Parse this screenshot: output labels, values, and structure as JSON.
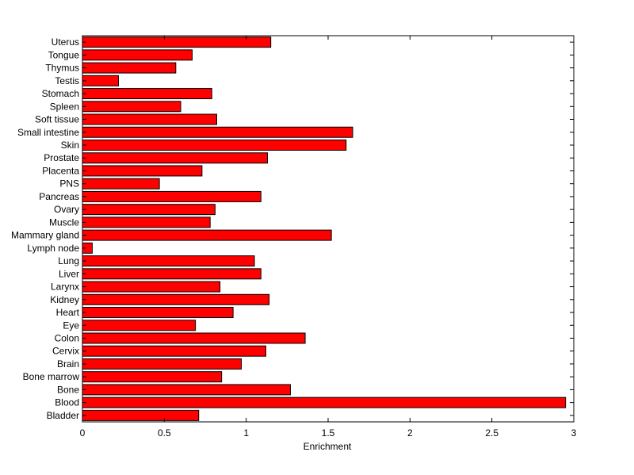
{
  "chart_data": {
    "type": "bar",
    "orientation": "horizontal",
    "xlabel": "Enrichment",
    "ylabel": "",
    "title": "",
    "xlim": [
      0,
      3
    ],
    "xticks": [
      "0",
      "0.5",
      "1",
      "1.5",
      "2",
      "2.5",
      "3"
    ],
    "grid": false,
    "bar_color": "#ff0000",
    "bar_edge_color": "#000000",
    "categories": [
      "Bladder",
      "Blood",
      "Bone",
      "Bone marrow",
      "Brain",
      "Cervix",
      "Colon",
      "Eye",
      "Heart",
      "Kidney",
      "Larynx",
      "Liver",
      "Lung",
      "Lymph node",
      "Mammary gland",
      "Muscle",
      "Ovary",
      "Pancreas",
      "PNS",
      "Placenta",
      "Prostate",
      "Skin",
      "Small intestine",
      "Soft tissue",
      "Spleen",
      "Stomach",
      "Testis",
      "Thymus",
      "Tongue",
      "Uterus"
    ],
    "values": [
      0.71,
      2.95,
      1.27,
      0.85,
      0.97,
      1.12,
      1.36,
      0.69,
      0.92,
      1.14,
      0.84,
      1.09,
      1.05,
      0.06,
      1.52,
      0.78,
      0.81,
      1.09,
      0.47,
      0.73,
      1.13,
      1.61,
      1.65,
      0.82,
      0.6,
      0.79,
      0.22,
      0.57,
      0.67,
      1.15
    ]
  }
}
